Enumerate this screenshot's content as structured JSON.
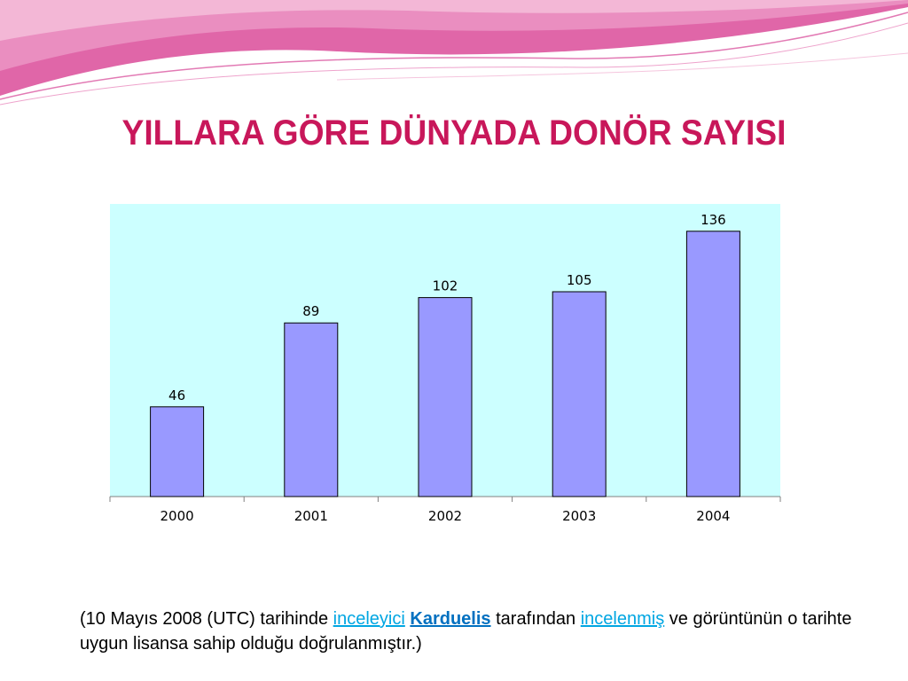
{
  "slide": {
    "title": "YILLARA GÖRE DÜNYADA DONÖR SAYISI"
  },
  "caption": {
    "part1": "(10 Mayıs 2008 (UTC) tarihinde ",
    "link1": "inceleyici",
    "part2": " ",
    "link2": "Karduelis",
    "part3": " tarafından ",
    "link3": "incelenmiş",
    "part4": " ve görüntünün o tarihte uygun  lisansa sahip olduğu doğrulanmıştır.)"
  },
  "colors": {
    "title": "#c8175a",
    "plot_background": "#ccffff",
    "bar_fill": "#9999ff",
    "bar_stroke": "#000000",
    "link": "#00a6e2",
    "decor_pink": "#e066a8",
    "decor_light": "#f3b7d6"
  },
  "chart_data": {
    "type": "bar",
    "title": "",
    "xlabel": "",
    "ylabel": "",
    "categories": [
      "2000",
      "2001",
      "2002",
      "2003",
      "2004"
    ],
    "values": [
      46,
      89,
      102,
      105,
      136
    ],
    "data_labels": [
      "46",
      "89",
      "102",
      "105",
      "136"
    ],
    "ylim": [
      0,
      150
    ],
    "grid": false,
    "legend": "none"
  }
}
